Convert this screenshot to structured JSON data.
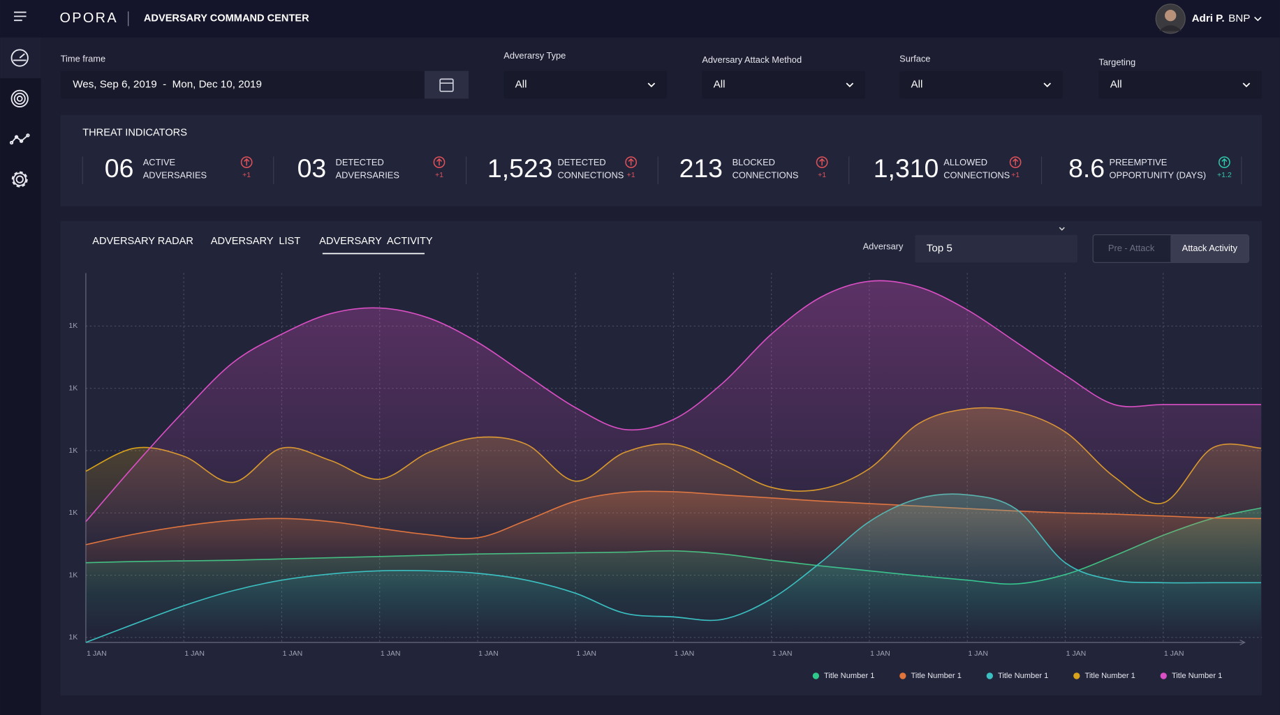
{
  "header": {
    "brand": "OPORA",
    "title": "ADVERSARY COMMAND CENTER",
    "user": "Adri P.",
    "org": "BNP"
  },
  "filters": [
    {
      "label": "Time frame",
      "value": "Wes, Sep 6, 2019  -  Mon, Dec 10, 2019"
    },
    {
      "label": "Adverarsy Type",
      "value": "All"
    },
    {
      "label": "Adversary Attack Method",
      "value": "All"
    },
    {
      "label": "Surface",
      "value": "All"
    },
    {
      "label": "Targeting",
      "value": "All"
    }
  ],
  "threat_indicators": {
    "title": "THREAT INDICATORS",
    "items": [
      {
        "value": "06",
        "label": [
          "ACTIVE",
          "ADVERSARIES"
        ],
        "change": "+1"
      },
      {
        "value": "03",
        "label": [
          "DETECTED",
          "ADVERSARIES"
        ],
        "change": "+1"
      },
      {
        "value": "1,523",
        "label": [
          "DETECTED",
          "CONNECTIONS"
        ],
        "change": "+1"
      },
      {
        "value": "213",
        "label": [
          "BLOCKED",
          "CONNECTIONS"
        ],
        "change": "+1"
      },
      {
        "value": "1,310",
        "label": [
          "ALLOWED",
          "CONNECTIONS"
        ],
        "change": "+1"
      },
      {
        "value": "8.6",
        "label": [
          "PREEMPTIVE",
          "OPPORTUNITY (DAYS)"
        ],
        "change": "+1.2"
      }
    ]
  },
  "tabs": [
    "ADVERSARY RADAR",
    "ADVERSARY  LIST",
    "ADVERSARY  ACTIVITY"
  ],
  "controls": {
    "adversary_label": "Adversary",
    "adversary_value": "Top 5",
    "modes": [
      "Pre - Attack",
      "Attack Activity"
    ]
  },
  "chart_data": {
    "type": "area-line",
    "categories": [
      "1 JAN",
      null,
      "1 JAN",
      null,
      "1 JAN",
      null,
      "1 JAN",
      null,
      "1 JAN",
      null,
      "1 JAN",
      null,
      "1 JAN",
      null,
      "1 JAN",
      null,
      "1 JAN",
      null,
      "1 JAN",
      null,
      "1 JAN",
      null,
      "1 JAN",
      null,
      null
    ],
    "ylim": [
      692,
      1285
    ],
    "yticks": [
      {
        "value": 700,
        "label": "1K"
      },
      {
        "value": 800,
        "label": "1K"
      },
      {
        "value": 900,
        "label": "1K"
      },
      {
        "value": 1000,
        "label": "1K"
      },
      {
        "value": 1100,
        "label": "1K"
      },
      {
        "value": 1200,
        "label": "1K"
      }
    ],
    "grid": true,
    "legend": "bottom-right",
    "series": [
      {
        "name": "Title Number 1",
        "color": "#2fc98b",
        "values": [
          820,
          822,
          823,
          824,
          826,
          828,
          830,
          832,
          834,
          835,
          836,
          837,
          839,
          834,
          824,
          815,
          807,
          799,
          792,
          786,
          801,
          831,
          864,
          891,
          908
        ]
      },
      {
        "name": "Title Number 1",
        "color": "#e0743a",
        "values": [
          849,
          866,
          879,
          888,
          891,
          886,
          875,
          865,
          860,
          888,
          919,
          933,
          934,
          929,
          924,
          919,
          915,
          911,
          907,
          903,
          900,
          898,
          895,
          892,
          891
        ]
      },
      {
        "name": "Title Number 1",
        "color": "#3bbfc0",
        "values": [
          692,
          722,
          751,
          775,
          792,
          802,
          807,
          807,
          803,
          792,
          771,
          739,
          733,
          729,
          762,
          820,
          886,
          923,
          929,
          906,
          820,
          792,
          788,
          788,
          788
        ]
      },
      {
        "name": "Title Number 1",
        "color": "#d9a21b",
        "values": [
          967,
          1004,
          991,
          949,
          1004,
          984,
          954,
          997,
          1021,
          1010,
          951,
          997,
          1010,
          978,
          941,
          938,
          971,
          1043,
          1067,
          1063,
          1030,
          958,
          916,
          1004,
          1004
        ]
      },
      {
        "name": "Title Number 1",
        "color": "#d94fc4",
        "values": [
          886,
          977,
          1063,
          1141,
          1187,
          1220,
          1229,
          1213,
          1174,
          1121,
          1069,
          1034,
          1050,
          1108,
          1187,
          1246,
          1272,
          1263,
          1226,
          1174,
          1121,
          1074,
          1074,
          1074,
          1074
        ]
      }
    ]
  }
}
